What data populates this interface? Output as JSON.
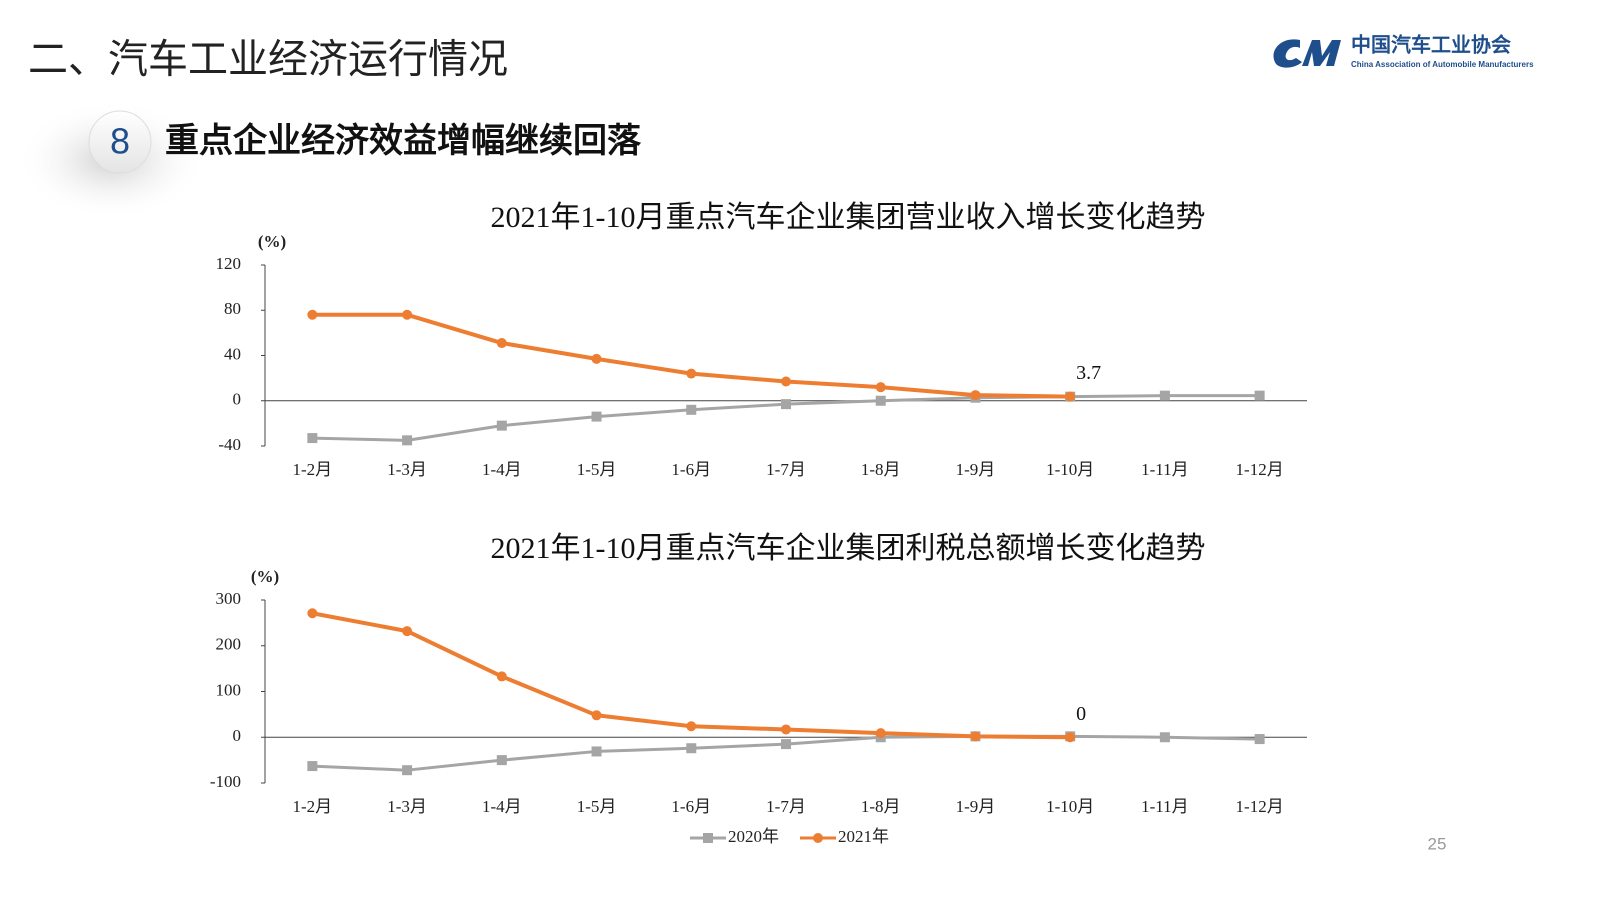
{
  "header": {
    "title": "二、汽车工业经济运行情况",
    "section_number": "8",
    "subtitle": "重点企业经济效益增幅继续回落"
  },
  "logo": {
    "name": "中国汽车工业协会",
    "english": "China Association of Automobile Manufacturers"
  },
  "page_number": "25",
  "chart_data": [
    {
      "type": "line",
      "title": "2021年1-10月重点汽车企业集团营业收入增长变化趋势",
      "y_label": "(%)",
      "categories": [
        "1-2月",
        "1-3月",
        "1-4月",
        "1-5月",
        "1-6月",
        "1-7月",
        "1-8月",
        "1-9月",
        "1-10月",
        "1-11月",
        "1-12月"
      ],
      "ylim": [
        -40,
        120
      ],
      "yticks": [
        -40,
        0,
        40,
        80,
        120
      ],
      "series": [
        {
          "color": "#a5a5a5",
          "marker": "square",
          "values": [
            -33,
            -35,
            -22,
            -14,
            -8,
            -3,
            0,
            2.7,
            3.6,
            4.5,
            4.5
          ]
        },
        {
          "color": "#ed7d31",
          "marker": "circle",
          "values": [
            76,
            76,
            51,
            37,
            24,
            17,
            12,
            5,
            3.7,
            null,
            null
          ],
          "value_labels": [
            null,
            null,
            null,
            null,
            null,
            null,
            null,
            null,
            "3.7",
            null,
            null
          ]
        }
      ]
    },
    {
      "type": "line",
      "title": "2021年1-10月重点汽车企业集团利税总额增长变化趋势",
      "y_label": "(%)",
      "categories": [
        "1-2月",
        "1-3月",
        "1-4月",
        "1-5月",
        "1-6月",
        "1-7月",
        "1-8月",
        "1-9月",
        "1-10月",
        "1-11月",
        "1-12月"
      ],
      "ylim": [
        -100,
        300
      ],
      "yticks": [
        -100,
        0,
        100,
        200,
        300
      ],
      "legend": "bottom",
      "series": [
        {
          "name": "2020年",
          "color": "#a5a5a5",
          "marker": "square",
          "values": [
            -63,
            -72,
            -50,
            -31,
            -24,
            -15,
            0,
            2,
            2,
            0,
            -4
          ]
        },
        {
          "name": "2021年",
          "color": "#ed7d31",
          "marker": "circle",
          "values": [
            271,
            232,
            133,
            48,
            24,
            17,
            9,
            2,
            0,
            null,
            null
          ],
          "value_labels": [
            null,
            null,
            null,
            null,
            null,
            null,
            null,
            null,
            "0",
            null,
            null
          ]
        }
      ]
    }
  ]
}
